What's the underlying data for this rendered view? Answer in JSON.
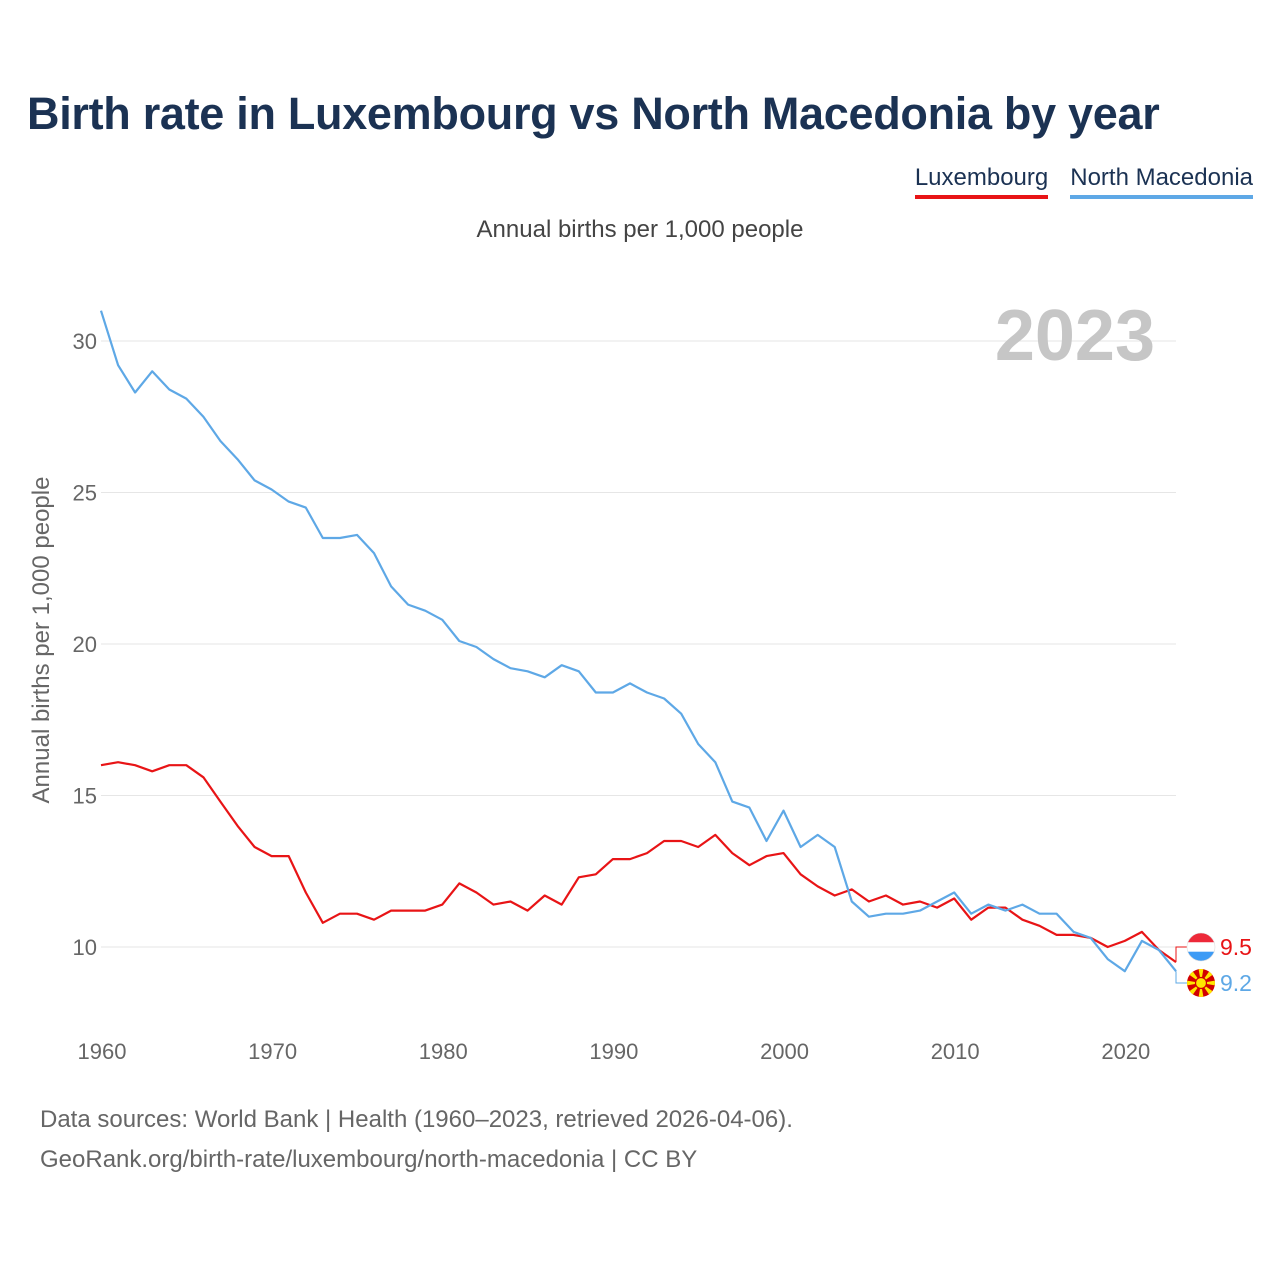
{
  "title": "Birth rate in Luxembourg vs North Macedonia by year",
  "subtitle": "Annual births per 1,000 people",
  "footer": {
    "sources": "Data sources: World Bank | Health (1960–2023, retrieved 2026-04-06).",
    "url": "GeoRank.org/birth-rate/luxembourg/north-macedonia | CC BY"
  },
  "colors": {
    "luxembourg": "#e81416",
    "north_macedonia": "#5ea8e6",
    "title": "#1b3253",
    "year_watermark": "#c6c6c6"
  },
  "chart_data": {
    "type": "line",
    "title": "Birth rate in Luxembourg vs North Macedonia by year",
    "xlabel": "",
    "ylabel": "Annual births per 1,000 people",
    "current_year": "2023",
    "xlim": [
      1960,
      2023
    ],
    "ylim": [
      8,
      31
    ],
    "yticks": [
      10,
      15,
      20,
      25,
      30
    ],
    "xticks": [
      1960,
      1970,
      1980,
      1990,
      2000,
      2010,
      2020
    ],
    "grid": true,
    "legend_position": "top-right",
    "x": [
      1960,
      1961,
      1962,
      1963,
      1964,
      1965,
      1966,
      1967,
      1968,
      1969,
      1970,
      1971,
      1972,
      1973,
      1974,
      1975,
      1976,
      1977,
      1978,
      1979,
      1980,
      1981,
      1982,
      1983,
      1984,
      1985,
      1986,
      1987,
      1988,
      1989,
      1990,
      1991,
      1992,
      1993,
      1994,
      1995,
      1996,
      1997,
      1998,
      1999,
      2000,
      2001,
      2002,
      2003,
      2004,
      2005,
      2006,
      2007,
      2008,
      2009,
      2010,
      2011,
      2012,
      2013,
      2014,
      2015,
      2016,
      2017,
      2018,
      2019,
      2020,
      2021,
      2022,
      2023
    ],
    "series": [
      {
        "name": "Luxembourg",
        "color": "#e81416",
        "end_label": "9.5",
        "values": [
          16.0,
          16.1,
          16.0,
          15.8,
          16.0,
          16.0,
          15.6,
          14.8,
          14.0,
          13.3,
          13.0,
          13.0,
          11.8,
          10.8,
          11.1,
          11.1,
          10.9,
          11.2,
          11.2,
          11.2,
          11.4,
          12.1,
          11.8,
          11.4,
          11.5,
          11.2,
          11.7,
          11.4,
          12.3,
          12.4,
          12.9,
          12.9,
          13.1,
          13.5,
          13.5,
          13.3,
          13.7,
          13.1,
          12.7,
          13.0,
          13.1,
          12.4,
          12.0,
          11.7,
          11.9,
          11.5,
          11.7,
          11.4,
          11.5,
          11.3,
          11.6,
          10.9,
          11.3,
          11.3,
          10.9,
          10.7,
          10.4,
          10.4,
          10.3,
          10.0,
          10.2,
          10.5,
          9.9,
          9.5
        ]
      },
      {
        "name": "North Macedonia",
        "color": "#5ea8e6",
        "end_label": "9.2",
        "values": [
          31.0,
          29.2,
          28.3,
          29.0,
          28.4,
          28.1,
          27.5,
          26.7,
          26.1,
          25.4,
          25.1,
          24.7,
          24.5,
          23.5,
          23.5,
          23.6,
          23.0,
          21.9,
          21.3,
          21.1,
          20.8,
          20.1,
          19.9,
          19.5,
          19.2,
          19.1,
          18.9,
          19.3,
          19.1,
          18.4,
          18.4,
          18.7,
          18.4,
          18.2,
          17.7,
          16.7,
          16.1,
          14.8,
          14.6,
          13.5,
          14.5,
          13.3,
          13.7,
          13.3,
          11.5,
          11.0,
          11.1,
          11.1,
          11.2,
          11.5,
          11.8,
          11.1,
          11.4,
          11.2,
          11.4,
          11.1,
          11.1,
          10.5,
          10.3,
          9.6,
          9.2,
          10.2,
          9.9,
          9.2
        ]
      }
    ]
  }
}
